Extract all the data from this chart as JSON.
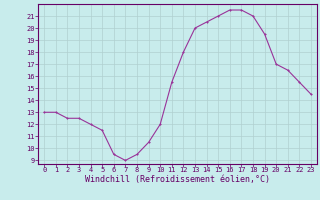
{
  "x": [
    0,
    1,
    2,
    3,
    4,
    5,
    6,
    7,
    8,
    9,
    10,
    11,
    12,
    13,
    14,
    15,
    16,
    17,
    18,
    19,
    20,
    21,
    22,
    23
  ],
  "y": [
    13,
    13,
    12.5,
    12.5,
    12,
    11.5,
    9.5,
    9,
    9.5,
    10.5,
    12,
    15.5,
    18,
    20,
    20.5,
    21,
    21.5,
    21.5,
    21,
    19.5,
    17,
    16.5,
    15.5,
    14.5
  ],
  "line_color": "#993399",
  "marker_color": "#993399",
  "bg_color": "#c8ecec",
  "grid_color": "#b0d0d0",
  "xlabel": "Windchill (Refroidissement éolien,°C)",
  "xlim": [
    -0.5,
    23.5
  ],
  "ylim": [
    8.7,
    22.0
  ],
  "yticks": [
    9,
    10,
    11,
    12,
    13,
    14,
    15,
    16,
    17,
    18,
    19,
    20,
    21
  ],
  "xticks": [
    0,
    1,
    2,
    3,
    4,
    5,
    6,
    7,
    8,
    9,
    10,
    11,
    12,
    13,
    14,
    15,
    16,
    17,
    18,
    19,
    20,
    21,
    22,
    23
  ],
  "font_color": "#660066",
  "tick_fontsize": 5.0,
  "label_fontsize": 6.0,
  "spine_color": "#660066",
  "linewidth": 0.8,
  "markersize": 2.0
}
